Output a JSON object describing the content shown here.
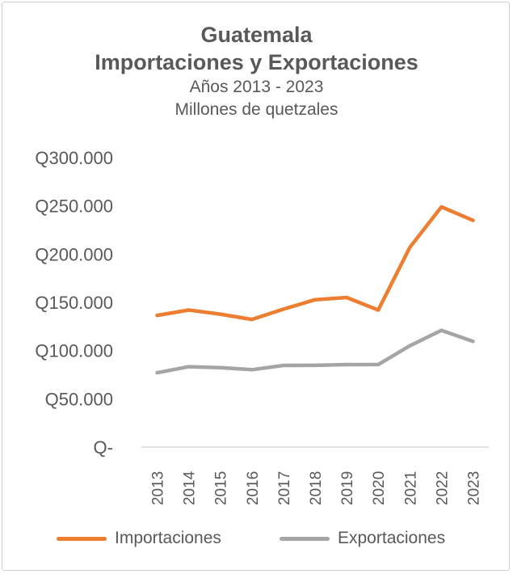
{
  "chart_data": {
    "type": "line",
    "title": "Guatemala",
    "subtitle": "Importaciones y Exportaciones",
    "subtitle2": "Años 2013 - 2023",
    "ylabel": "Millones de quetzales",
    "xlabel": "",
    "categories": [
      "2013",
      "2014",
      "2015",
      "2016",
      "2017",
      "2018",
      "2019",
      "2020",
      "2021",
      "2022",
      "2023"
    ],
    "yticks": [
      {
        "value": 0,
        "label": "Q-"
      },
      {
        "value": 50000,
        "label": "Q50.000"
      },
      {
        "value": 100000,
        "label": "Q100.000"
      },
      {
        "value": 150000,
        "label": "Q150.000"
      },
      {
        "value": 200000,
        "label": "Q200.000"
      },
      {
        "value": 250000,
        "label": "Q250.000"
      },
      {
        "value": 300000,
        "label": "Q300.000"
      }
    ],
    "ylim": [
      0,
      300000
    ],
    "grid": false,
    "legend_position": "bottom",
    "series": [
      {
        "name": "Importaciones",
        "color": "#ED7D31",
        "values": [
          136500,
          142000,
          137800,
          132300,
          143000,
          152800,
          155000,
          142000,
          207000,
          249000,
          235000
        ]
      },
      {
        "name": "Exportaciones",
        "color": "#A5A5A5",
        "values": [
          77000,
          83300,
          82300,
          80200,
          84600,
          84700,
          85500,
          85600,
          105000,
          121000,
          109500
        ]
      }
    ]
  }
}
